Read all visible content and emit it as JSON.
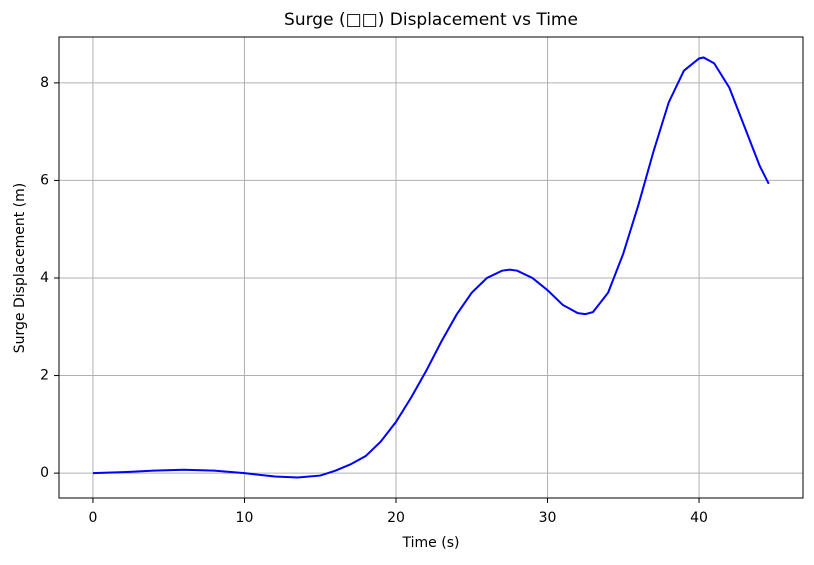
{
  "chart_data": {
    "type": "line",
    "title": "Surge (□□) Displacement vs Time",
    "x_label": "Time (s)",
    "y_label": "Surge Displacement (m)",
    "x": [
      0,
      2,
      4,
      6,
      8,
      10,
      12,
      13.5,
      15,
      16,
      17,
      18,
      19,
      20,
      21,
      22,
      23,
      24,
      25,
      26,
      27,
      27.5,
      28,
      29,
      30,
      31,
      32,
      32.5,
      33,
      34,
      35,
      36,
      37,
      38,
      39,
      40,
      40.3,
      41,
      42,
      43,
      44,
      44.6
    ],
    "series": [
      {
        "name": "Surge",
        "color": "#0000ff",
        "values": [
          0,
          0.02,
          0.05,
          0.07,
          0.05,
          0.0,
          -0.07,
          -0.09,
          -0.05,
          0.05,
          0.18,
          0.35,
          0.65,
          1.05,
          1.55,
          2.1,
          2.7,
          3.25,
          3.7,
          4.0,
          4.15,
          4.17,
          4.15,
          4.0,
          3.75,
          3.45,
          3.28,
          3.26,
          3.3,
          3.7,
          4.5,
          5.5,
          6.6,
          7.6,
          8.25,
          8.5,
          8.52,
          8.4,
          7.9,
          7.1,
          6.3,
          5.93
        ]
      }
    ],
    "xlim": [
      -2.24,
      46.86
    ],
    "xticks": [
      0,
      10,
      20,
      30,
      40
    ],
    "ylim": [
      -0.51,
      8.94
    ],
    "yticks": [
      0,
      2,
      4,
      6,
      8
    ],
    "grid": true
  }
}
